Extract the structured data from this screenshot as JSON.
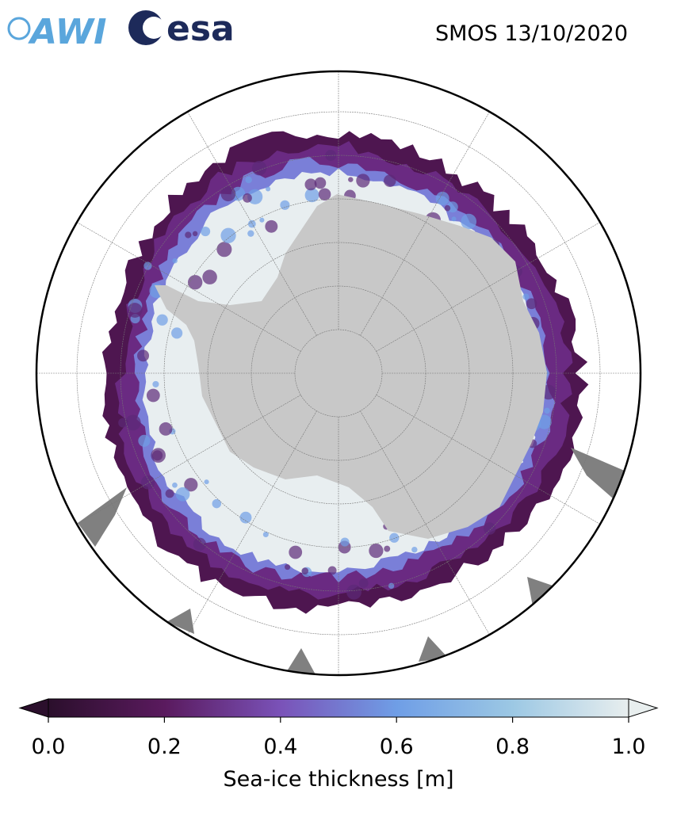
{
  "title": "SMOS 13/10/2020",
  "logos": [
    "AWI",
    "esa"
  ],
  "colorbar": {
    "label": "Sea-ice thickness [m]",
    "lim": [
      0,
      1
    ],
    "ticks": [
      {
        "value": 0,
        "label": "0.0"
      },
      {
        "value": 0.2,
        "label": "0.2"
      },
      {
        "value": 0.4,
        "label": "0.4"
      },
      {
        "value": 0.6,
        "label": "0.6"
      },
      {
        "value": 0.8,
        "label": "0.8"
      },
      {
        "value": 1,
        "label": "1.0"
      }
    ],
    "colors": [
      "#2b0f2c",
      "#5a1a5e",
      "#7a52b8",
      "#6f9ee6",
      "#9cc8e4",
      "#e8eeee"
    ]
  }
}
